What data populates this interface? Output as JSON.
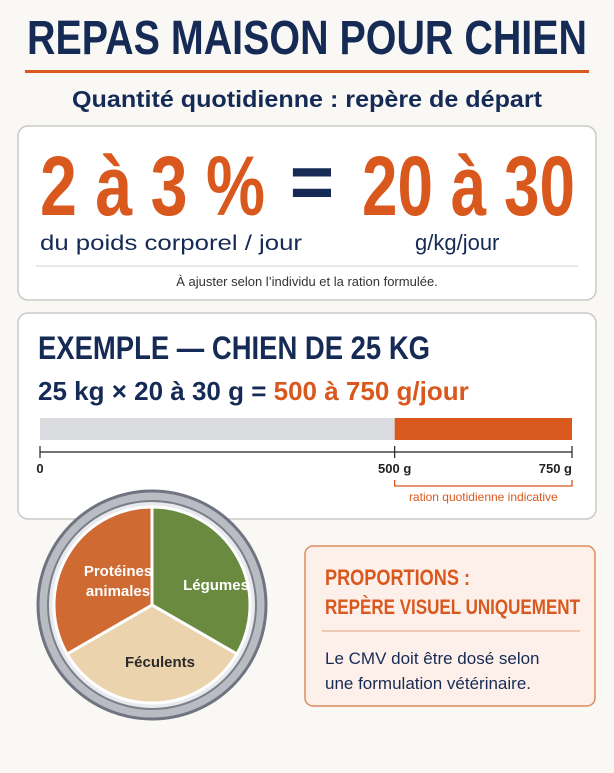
{
  "header": {
    "title": "REPAS MAISON POUR CHIEN",
    "subtitle": "Quantité quotidienne : repère de départ"
  },
  "daily_amount": {
    "percent": "2 à 3 %",
    "equals": "=",
    "per_kg": "20 à 30",
    "percent_caption": "du poids corporel / jour",
    "per_kg_caption": "g/kg/jour",
    "note": "À ajuster selon l’individu et la ration formulée."
  },
  "example": {
    "title": "EXEMPLE — CHIEN DE 25 KG",
    "formula": "25 kg × 20 à 30 g = ",
    "result": "500 à 750 g/jour",
    "scale": {
      "ticks": [
        {
          "value": 0,
          "label": "0"
        },
        {
          "value": 500,
          "label": "500 g"
        },
        {
          "value": 750,
          "label": "750 g"
        }
      ],
      "range_label": "ration quotidienne indicative"
    }
  },
  "plate": {
    "sections": [
      "Protéines animales",
      "Légumes",
      "Féculents"
    ]
  },
  "proportions": {
    "title_line1": "PROPORTIONS :",
    "title_line2": "REPÈRE VISUEL UNIQUEMENT",
    "text_line1": "Le CMV doit être dosé selon",
    "text_line2": "une formulation vétérinaire."
  }
}
